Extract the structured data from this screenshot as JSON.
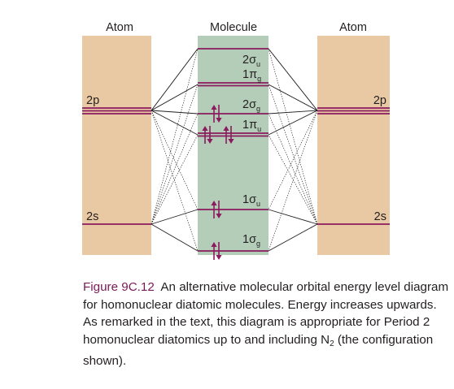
{
  "diagram": {
    "headers": {
      "left": "Atom",
      "center": "Molecule",
      "right": "Atom"
    },
    "atomic_levels": {
      "left": [
        {
          "label": "2p"
        },
        {
          "label": "2s"
        }
      ],
      "right": [
        {
          "label": "2p"
        },
        {
          "label": "2s"
        }
      ]
    },
    "molecular_orbitals": [
      {
        "symbol": "2σ",
        "subscript": "u",
        "electrons": 0
      },
      {
        "symbol": "1π",
        "subscript": "g",
        "electrons": 0
      },
      {
        "symbol": "2σ",
        "subscript": "g",
        "electrons": 2
      },
      {
        "symbol": "1π",
        "subscript": "u",
        "electrons": 4
      },
      {
        "symbol": "1σ",
        "subscript": "u",
        "electrons": 2
      },
      {
        "symbol": "1σ",
        "subscript": "g",
        "electrons": 2
      }
    ],
    "colors": {
      "atom_column": "#e9c9a3",
      "molecule_column": "#b4cdb9",
      "level_line": "#8b1a5e",
      "connector": "#231f20",
      "figure_label": "#7a1a55"
    }
  },
  "caption": {
    "figure_label": "Figure 9C.12",
    "text_before_sub": "An alternative molecular orbital energy level diagram for homonuclear diatomic molecules. Energy increases upwards. As remarked in the text, this diagram is appropriate for Period 2 homonuclear diatomics up to and including N",
    "subscript": "2",
    "text_after_sub": " (the configuration shown)."
  }
}
